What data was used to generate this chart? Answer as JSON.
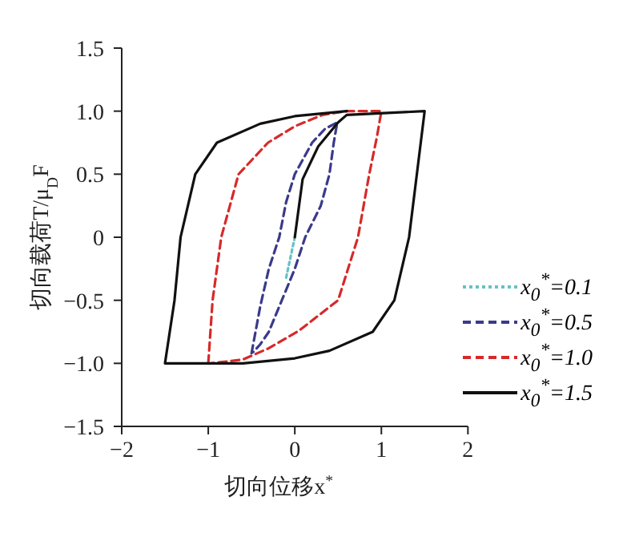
{
  "chart_data": {
    "type": "line",
    "xlabel": "切向位移x$^{*}$",
    "ylabel": "切向载荷T/μ$_{D}$F",
    "xlim": [
      -2,
      2
    ],
    "xticks": [
      {
        "value": -2,
        "label": "−2"
      },
      {
        "value": -1,
        "label": "−1"
      },
      0,
      1,
      2
    ],
    "ylim": [
      -1.5,
      1.5
    ],
    "yticks": [
      {
        "value": -1.5,
        "label": "−1.5"
      },
      {
        "value": -1,
        "label": "−1.0"
      },
      {
        "value": -0.5,
        "label": "−0.5"
      },
      0,
      0.5,
      {
        "value": 1,
        "label": "1.0"
      },
      1.5
    ],
    "grid": false,
    "legend": "bottom right",
    "marker": "none",
    "series": [
      {
        "name": "x$_{0}$$^{*}$=0.1",
        "color": "#66c2c2",
        "line_style": "dotted",
        "x": [
          -0.1,
          -0.05,
          0
        ],
        "values": [
          -0.32,
          -0.16,
          0
        ]
      },
      {
        "name": "x$_{0}$$^{*}$=0.5",
        "color": "#3a3a8c",
        "line_style": "dashed",
        "x": [
          -0.5,
          -0.4,
          -0.3,
          -0.18,
          -0.1,
          0,
          0.2,
          0.35,
          0.49,
          0.45,
          0.4,
          0.3,
          0.12,
          0,
          -0.15,
          -0.3,
          -0.4,
          -0.48
        ],
        "values": [
          -0.92,
          -0.55,
          -0.25,
          0,
          0.28,
          0.5,
          0.75,
          0.86,
          0.91,
          0.75,
          0.5,
          0.25,
          0,
          -0.25,
          -0.5,
          -0.75,
          -0.85,
          -0.91
        ]
      },
      {
        "name": "x$_{0}$$^{*}$=1.0",
        "color": "#d62a2a",
        "line_style": "dashed",
        "x": [
          -1,
          -0.95,
          -0.85,
          -0.65,
          -0.31,
          0,
          0.32,
          0.6,
          1,
          0.95,
          0.86,
          0.73,
          0.5,
          0.05,
          -0.3,
          -0.6,
          -0.97
        ],
        "values": [
          -1,
          -0.5,
          0,
          0.5,
          0.75,
          0.88,
          0.97,
          1,
          1,
          0.8,
          0.5,
          0,
          -0.5,
          -0.74,
          -0.88,
          -0.97,
          -1
        ]
      },
      {
        "name": "x$_{0}$$^{*}$=1.5",
        "color": "#111111",
        "line_style": "solid",
        "x": [
          0,
          0.09,
          0.27,
          0.5,
          0.6,
          1.5,
          1.32,
          1.15,
          0.9,
          0.4,
          0,
          -0.6,
          -1.5,
          -1.39,
          -1.32,
          -1.15,
          -0.9,
          -0.4,
          0,
          0.6
        ],
        "values": [
          0,
          0.46,
          0.72,
          0.91,
          0.97,
          1,
          0,
          -0.5,
          -0.75,
          -0.9,
          -0.96,
          -1,
          -1,
          -0.5,
          0,
          0.5,
          0.75,
          0.9,
          0.96,
          1
        ]
      }
    ]
  }
}
